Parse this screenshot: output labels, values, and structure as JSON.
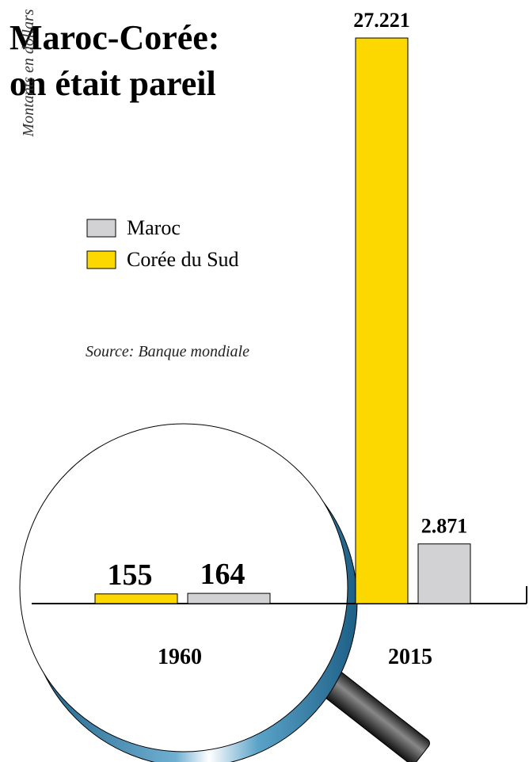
{
  "chart_data": {
    "type": "bar",
    "title": "Maroc-Corée:",
    "subtitle": "on était pareil",
    "y_label": "Montants en dollars",
    "source": "Source: Banque mondiale",
    "categories": [
      "1960",
      "2015"
    ],
    "series": [
      {
        "name": "Maroc",
        "color": "#d2d2d4",
        "values": [
          164,
          2871
        ],
        "value_labels": [
          "164",
          "2.871"
        ]
      },
      {
        "name": "Corée du Sud",
        "color": "#fcd800",
        "values": [
          155,
          27221
        ],
        "value_labels": [
          "155",
          "27.221"
        ]
      }
    ]
  }
}
